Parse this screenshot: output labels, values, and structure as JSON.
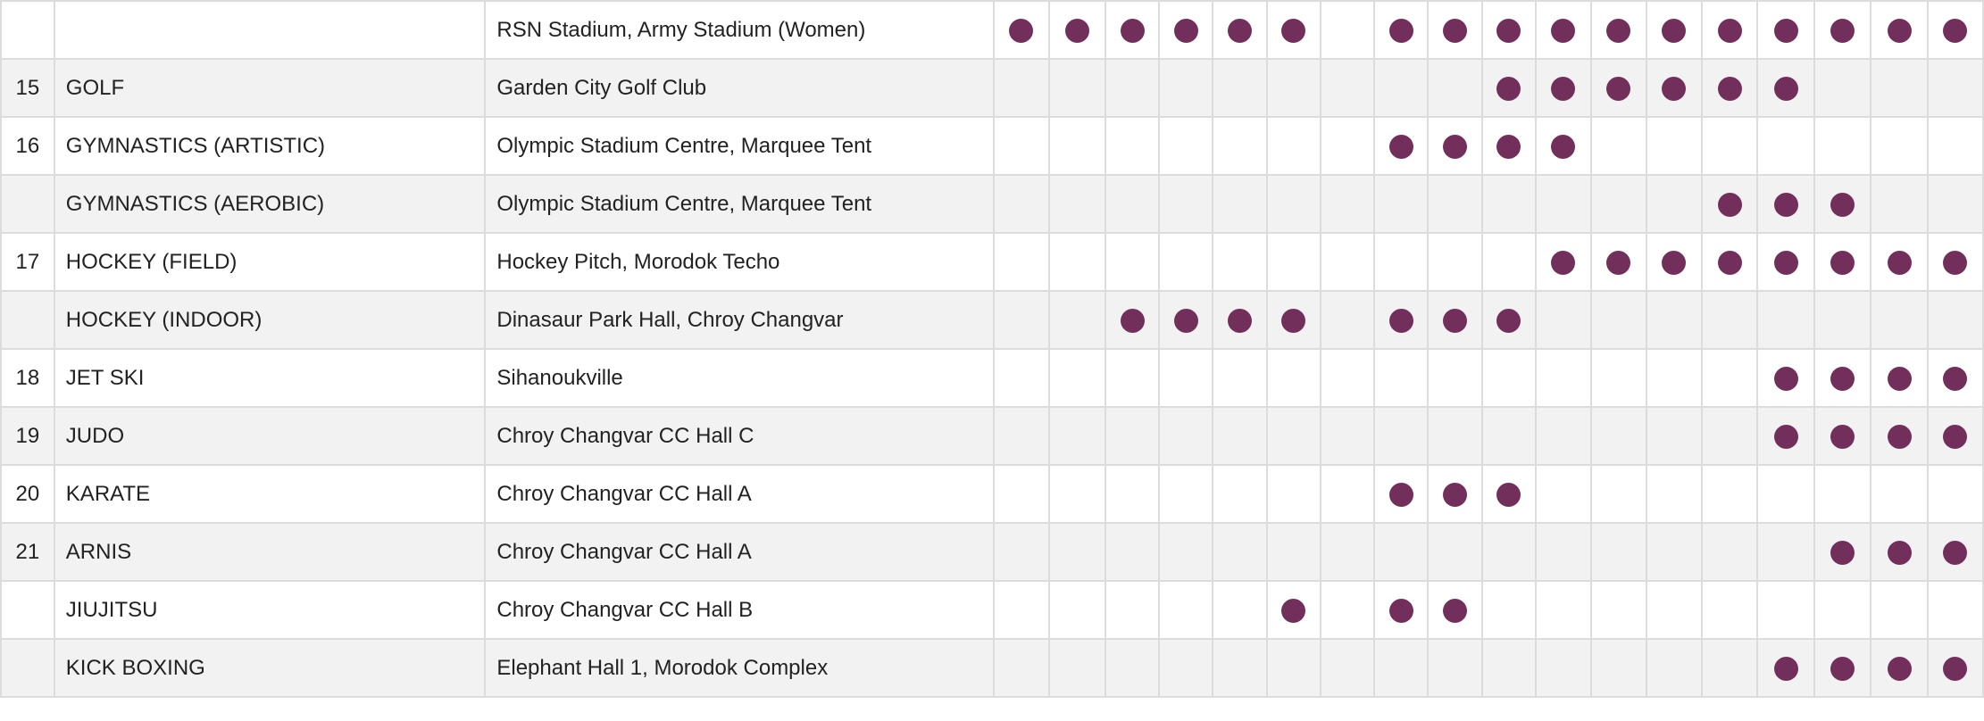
{
  "colors": {
    "dot": "#732f5b"
  },
  "rows": [
    {
      "num": "",
      "sport": "",
      "venue": "RSN Stadium, Army Stadium (Women)",
      "days": [
        0,
        1,
        2,
        3,
        4,
        5,
        7,
        8,
        9,
        10,
        11,
        12,
        13,
        14,
        15,
        16,
        17
      ]
    },
    {
      "num": "15",
      "sport": "GOLF",
      "venue": "Garden City Golf Club",
      "days": [
        9,
        10,
        11,
        12,
        13,
        14
      ]
    },
    {
      "num": "16",
      "sport": "GYMNASTICS (ARTISTIC)",
      "venue": "Olympic Stadium Centre, Marquee Tent",
      "days": [
        7,
        8,
        9,
        10
      ]
    },
    {
      "num": "",
      "sport": "GYMNASTICS (AEROBIC)",
      "venue": "Olympic Stadium Centre, Marquee Tent",
      "days": [
        13,
        14,
        15
      ]
    },
    {
      "num": "17",
      "sport": "HOCKEY (FIELD)",
      "venue": "Hockey Pitch, Morodok Techo",
      "days": [
        10,
        11,
        12,
        13,
        14,
        15,
        16,
        17
      ]
    },
    {
      "num": "",
      "sport": "HOCKEY (INDOOR)",
      "venue": "Dinasaur Park Hall, Chroy Changvar",
      "days": [
        2,
        3,
        4,
        5,
        7,
        8,
        9
      ]
    },
    {
      "num": "18",
      "sport": "JET SKI",
      "venue": "Sihanoukville",
      "days": [
        14,
        15,
        16,
        17
      ]
    },
    {
      "num": "19",
      "sport": "JUDO",
      "venue": "Chroy Changvar CC Hall C",
      "days": [
        14,
        15,
        16,
        17
      ]
    },
    {
      "num": "20",
      "sport": "KARATE",
      "venue": "Chroy Changvar CC Hall A",
      "days": [
        7,
        8,
        9
      ]
    },
    {
      "num": "21",
      "sport": "ARNIS",
      "venue": "Chroy Changvar CC Hall A",
      "days": [
        15,
        16,
        17
      ]
    },
    {
      "num": "",
      "sport": "JIUJITSU",
      "venue": "Chroy Changvar CC Hall B",
      "days": [
        5,
        7,
        8
      ]
    },
    {
      "num": "",
      "sport": "KICK BOXING",
      "venue": "Elephant Hall 1, Morodok Complex",
      "days": [
        14,
        15,
        16,
        17
      ]
    }
  ]
}
